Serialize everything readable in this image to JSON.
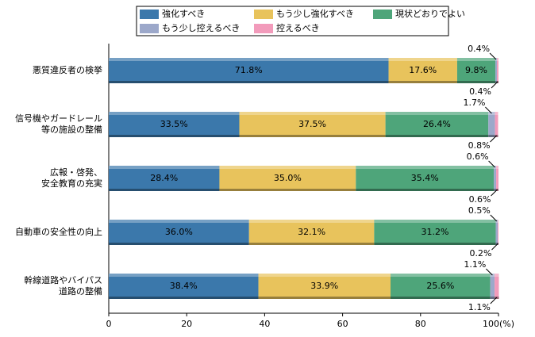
{
  "chart_data": {
    "type": "stacked-barh",
    "categories": [
      "悪質違反者の検挙",
      "信号機やガードレール\n等の施設の整備",
      "広報・啓発、\n安全教育の充実",
      "自動車の安全性の向上",
      "幹線道路やバイパス\n道路の整備"
    ],
    "series": [
      {
        "name": "強化すべき",
        "color": "#3b78ab",
        "values": [
          71.8,
          33.5,
          28.4,
          36.0,
          38.4
        ],
        "value_labels": [
          "71.8%",
          "33.5%",
          "28.4%",
          "36.0%",
          "38.4%"
        ]
      },
      {
        "name": "もう少し強化すべき",
        "color": "#e8c35c",
        "values": [
          17.6,
          37.5,
          35.0,
          32.1,
          33.9
        ],
        "value_labels": [
          "17.6%",
          "37.5%",
          "35.0%",
          "32.1%",
          "33.9%"
        ]
      },
      {
        "name": "現状どおりでよい",
        "color": "#4ea57a",
        "values": [
          9.8,
          26.4,
          35.4,
          31.2,
          25.6
        ],
        "value_labels": [
          "9.8%",
          "26.4%",
          "35.4%",
          "31.2%",
          "25.6%"
        ]
      },
      {
        "name": "もう少し控えるべき",
        "color": "#9ca8ca",
        "values": [
          0.4,
          1.7,
          0.6,
          0.5,
          1.1
        ],
        "value_labels": [
          "0.4%",
          "1.7%",
          "0.6%",
          "0.5%",
          "1.1%"
        ]
      },
      {
        "name": "控えるべき",
        "color": "#f29bbb",
        "values": [
          0.4,
          0.8,
          0.6,
          0.2,
          1.1
        ],
        "value_labels": [
          "0.4%",
          "0.8%",
          "0.6%",
          "0.2%",
          "1.1%"
        ]
      }
    ],
    "xlim": [
      0,
      100
    ],
    "xticks": [
      0,
      20,
      40,
      60,
      80,
      {
        "value": 100,
        "label": "100(%)"
      }
    ]
  }
}
